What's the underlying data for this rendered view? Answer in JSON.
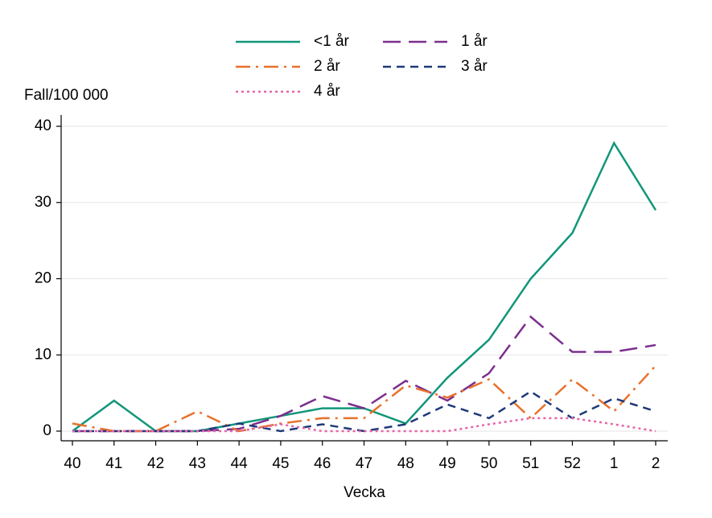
{
  "chart_data": {
    "type": "line",
    "y_label": "Fall/100 000",
    "x_label": "Vecka",
    "categories": [
      "40",
      "41",
      "42",
      "43",
      "44",
      "45",
      "46",
      "47",
      "48",
      "49",
      "50",
      "51",
      "52",
      "1",
      "2"
    ],
    "series": [
      {
        "name": "<1 år",
        "color": "#12967a",
        "style": "solid",
        "values": [
          0,
          4,
          0,
          0,
          1,
          2,
          3,
          3,
          1,
          7,
          12,
          20,
          26,
          37.8,
          29
        ]
      },
      {
        "name": "1 år",
        "color": "#7b2f8e",
        "style": "longdash",
        "values": [
          0,
          0,
          0,
          0,
          0.3,
          2,
          4.6,
          3,
          6.6,
          4,
          7.6,
          15,
          10.4,
          10.4,
          11.3
        ]
      },
      {
        "name": "2 år",
        "color": "#e8712b",
        "style": "dashdot",
        "values": [
          1,
          0,
          0,
          2.6,
          0,
          1,
          1.7,
          1.7,
          6,
          4.4,
          6.8,
          1.7,
          6.8,
          2.6,
          8.6
        ]
      },
      {
        "name": "3 år",
        "color": "#1f3a7a",
        "style": "shortdash",
        "values": [
          0,
          0,
          0,
          0,
          1,
          0,
          0.9,
          0,
          0.9,
          3.5,
          1.7,
          5.2,
          1.7,
          4.3,
          2.6
        ]
      },
      {
        "name": "4 år",
        "color": "#e565a8",
        "style": "dot",
        "values": [
          0,
          0,
          0,
          0,
          0,
          0.9,
          0,
          0,
          0,
          0,
          0.9,
          1.7,
          1.7,
          0.9,
          0
        ]
      }
    ],
    "ylim": [
      0,
      40
    ],
    "yticks": [
      0,
      10,
      20,
      30,
      40
    ],
    "grid": true
  }
}
